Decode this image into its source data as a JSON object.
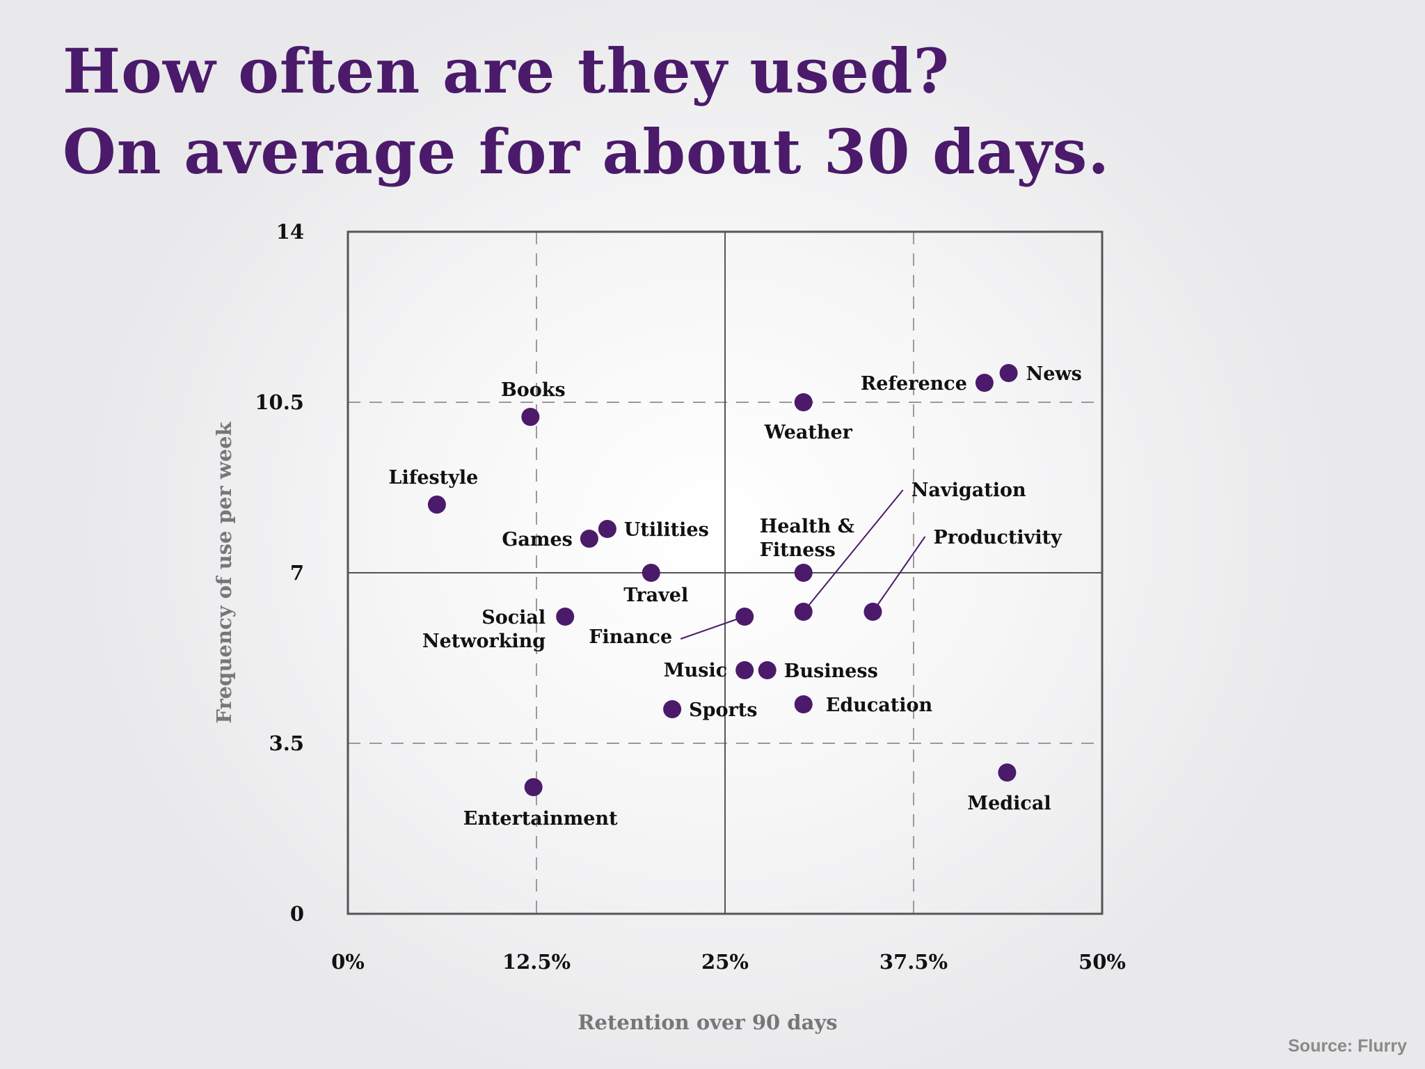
{
  "title": {
    "line1": "How often are they used?",
    "line2": "On average for about 30 days."
  },
  "source": "Source: Flurry",
  "colors": {
    "title": "#4b1a6a",
    "point": "#4b1a6a",
    "axis_label": "#777777",
    "frame": "#555555"
  },
  "chart_data": {
    "type": "scatter",
    "xlabel": "Retention over 90 days",
    "ylabel": "Frequency of use per week",
    "xlim": [
      0,
      50
    ],
    "ylim": [
      0,
      14
    ],
    "x_ticks": [
      {
        "value": 0,
        "label": "0%"
      },
      {
        "value": 12.5,
        "label": "12.5%"
      },
      {
        "value": 25,
        "label": "25%"
      },
      {
        "value": 37.5,
        "label": "37.5%"
      },
      {
        "value": 50,
        "label": "50%"
      }
    ],
    "y_ticks": [
      {
        "value": 0,
        "label": "0"
      },
      {
        "value": 3.5,
        "label": "3.5"
      },
      {
        "value": 7,
        "label": "7"
      },
      {
        "value": 10.5,
        "label": "10.5"
      },
      {
        "value": 14,
        "label": "14"
      }
    ],
    "dashed_gridlines": {
      "x": [
        12.5,
        37.5
      ],
      "y": [
        3.5,
        10.5
      ]
    },
    "solid_gridlines": {
      "x": [
        25
      ],
      "y": [
        7
      ]
    },
    "points": [
      {
        "label": "News",
        "x": 43.8,
        "y": 11.1
      },
      {
        "label": "Reference",
        "x": 42.2,
        "y": 10.9
      },
      {
        "label": "Weather",
        "x": 30.2,
        "y": 10.5
      },
      {
        "label": "Books",
        "x": 12.1,
        "y": 10.2
      },
      {
        "label": "Lifestyle",
        "x": 5.9,
        "y": 8.4
      },
      {
        "label": "Utilities",
        "x": 17.2,
        "y": 7.9
      },
      {
        "label": "Games",
        "x": 16.0,
        "y": 7.7
      },
      {
        "label": "Travel",
        "x": 20.1,
        "y": 7.0
      },
      {
        "label": "Health & Fitness",
        "x": 30.2,
        "y": 7.0
      },
      {
        "label": "Navigation",
        "x": 30.2,
        "y": 6.2
      },
      {
        "label": "Productivity",
        "x": 34.8,
        "y": 6.2
      },
      {
        "label": "Social Networking",
        "x": 14.4,
        "y": 6.1
      },
      {
        "label": "Finance",
        "x": 26.3,
        "y": 6.1
      },
      {
        "label": "Music",
        "x": 26.3,
        "y": 5.0
      },
      {
        "label": "Business",
        "x": 27.8,
        "y": 5.0
      },
      {
        "label": "Education",
        "x": 30.2,
        "y": 4.3
      },
      {
        "label": "Sports",
        "x": 21.5,
        "y": 4.2
      },
      {
        "label": "Medical",
        "x": 43.7,
        "y": 2.9
      },
      {
        "label": "Entertainment",
        "x": 12.3,
        "y": 2.6
      }
    ]
  }
}
